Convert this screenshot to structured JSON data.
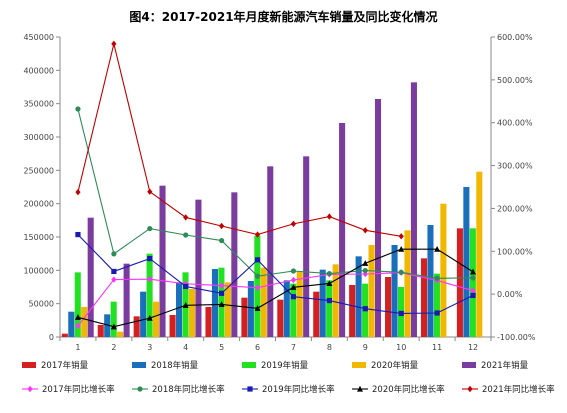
{
  "chart_data": {
    "type": "bar",
    "title": "图4：2017-2021年月度新能源汽车销量及同比变化情况",
    "categories": [
      "1",
      "2",
      "3",
      "4",
      "5",
      "6",
      "7",
      "8",
      "9",
      "10",
      "11",
      "12"
    ],
    "y_left": {
      "min": 0,
      "max": 450000,
      "step": 50000
    },
    "y_right": {
      "min": -100,
      "max": 600,
      "step": 100,
      "tick_labels": [
        "-100.00%",
        "0.00%",
        "100.00%",
        "200.00%",
        "300.00%",
        "400.00%",
        "500.00%",
        "600.00%"
      ]
    },
    "grid": false,
    "legend_position": "bottom",
    "bar_series": [
      {
        "name": "2017年销量",
        "color": "#d42020",
        "values": [
          5000,
          18000,
          31000,
          33000,
          45000,
          59000,
          56000,
          68000,
          78000,
          90000,
          118000,
          163000
        ]
      },
      {
        "name": "2018年销量",
        "color": "#1a6fbd",
        "values": [
          38000,
          34000,
          68000,
          82000,
          102000,
          84000,
          85000,
          101000,
          121000,
          138000,
          168000,
          225000
        ]
      },
      {
        "name": "2019年销量",
        "color": "#22e022",
        "values": [
          97000,
          53000,
          125000,
          97000,
          104000,
          152000,
          80000,
          85000,
          80000,
          75000,
          95000,
          163000
        ]
      },
      {
        "name": "2020年销量",
        "color": "#f0b800",
        "values": [
          45000,
          8000,
          53000,
          72000,
          82000,
          104000,
          98000,
          109000,
          138000,
          160000,
          200000,
          248000
        ]
      },
      {
        "name": "2021年销量",
        "color": "#7a3c9e",
        "values": [
          179000,
          110000,
          227000,
          206000,
          217000,
          256000,
          271000,
          321000,
          357000,
          382000,
          0,
          0
        ]
      }
    ],
    "line_series": [
      {
        "name": "2017年同比增长率",
        "color": "#ff33ff",
        "marker": "diamond",
        "values": [
          -74,
          34,
          35,
          24,
          20,
          15,
          33,
          46,
          47,
          50,
          32,
          8
        ]
      },
      {
        "name": "2018年同比增长率",
        "color": "#2e8b57",
        "marker": "circle",
        "values": [
          432,
          94,
          153,
          138,
          125,
          42,
          54,
          48,
          55,
          51,
          37,
          38
        ]
      },
      {
        "name": "2019年同比增长率",
        "color": "#1a1ab3",
        "marker": "square",
        "values": [
          139,
          53,
          83,
          18,
          2,
          80,
          -6,
          -15,
          -34,
          -45,
          -44,
          -3
        ]
      },
      {
        "name": "2020年同比增长率",
        "color": "#000000",
        "marker": "triangle",
        "values": [
          -54,
          -76,
          -56,
          -26,
          -24,
          -33,
          16,
          25,
          72,
          105,
          105,
          52
        ]
      },
      {
        "name": "2021年同比增长率",
        "color": "#c00000",
        "marker": "diamond",
        "values": [
          238,
          584,
          239,
          179,
          159,
          139,
          164,
          181,
          149,
          135,
          null,
          null
        ]
      }
    ]
  }
}
